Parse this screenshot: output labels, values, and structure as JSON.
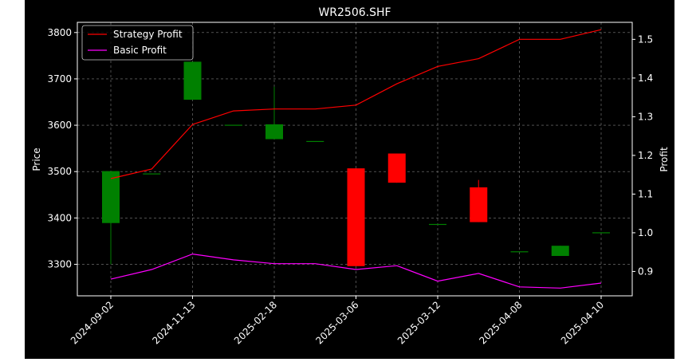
{
  "chart_data": {
    "type": "candlestick",
    "title": "WR2506.SHF",
    "ylabel_left": "Price",
    "ylabel_right": "Profit",
    "grid": true,
    "legend_position": "top-left",
    "ylim_left": [
      3232,
      3822
    ],
    "ylim_right": [
      0.837,
      1.544
    ],
    "yticks_left": [
      3300,
      3400,
      3500,
      3600,
      3700,
      3800
    ],
    "yticks_right": [
      0.9,
      1.0,
      1.1,
      1.2,
      1.3,
      1.4,
      1.5
    ],
    "xtick_labels": [
      "2024-09-02",
      "2024-11-13",
      "2025-02-18",
      "2025-03-06",
      "2025-03-12",
      "2025-04-08",
      "2025-04-10"
    ],
    "candles": [
      {
        "open": 3389,
        "close": 3501,
        "high": 3501,
        "low": 3300
      },
      {
        "open": 3496,
        "close": 3496,
        "high": 3496,
        "low": 3496
      },
      {
        "open": 3655,
        "close": 3737,
        "high": 3737,
        "low": 3655
      },
      {
        "open": 3601,
        "close": 3601,
        "high": 3601,
        "low": 3601
      },
      {
        "open": 3570,
        "close": 3602,
        "high": 3683,
        "low": 3570
      },
      {
        "open": 3566,
        "close": 3566,
        "high": 3566,
        "low": 3566
      },
      {
        "open": 3507,
        "close": 3296,
        "high": 3507,
        "low": 3296
      },
      {
        "open": 3539,
        "close": 3476,
        "high": 3539,
        "low": 3476
      },
      {
        "open": 3387,
        "close": 3387,
        "high": 3387,
        "low": 3387
      },
      {
        "open": 3466,
        "close": 3391,
        "high": 3482,
        "low": 3391
      },
      {
        "open": 3328,
        "close": 3328,
        "high": 3328,
        "low": 3328
      },
      {
        "open": 3318,
        "close": 3340,
        "high": 3340,
        "low": 3318
      },
      {
        "open": 3369,
        "close": 3369,
        "high": 3369,
        "low": 3369
      }
    ],
    "series": [
      {
        "name": "Strategy Profit",
        "color": "#ff0000",
        "values": [
          1.14,
          1.165,
          1.28,
          1.315,
          1.32,
          1.32,
          1.33,
          1.385,
          1.43,
          1.45,
          1.5,
          1.5,
          1.525
        ]
      },
      {
        "name": "Basic Profit",
        "color": "#ff00ff",
        "values": [
          0.88,
          0.905,
          0.945,
          0.93,
          0.92,
          0.92,
          0.905,
          0.915,
          0.875,
          0.895,
          0.86,
          0.857,
          0.87
        ]
      }
    ],
    "colors": {
      "up": "#008000",
      "down": "#ff0000",
      "background": "#000000",
      "axis": "#ffffff",
      "grid": "#808080"
    }
  }
}
